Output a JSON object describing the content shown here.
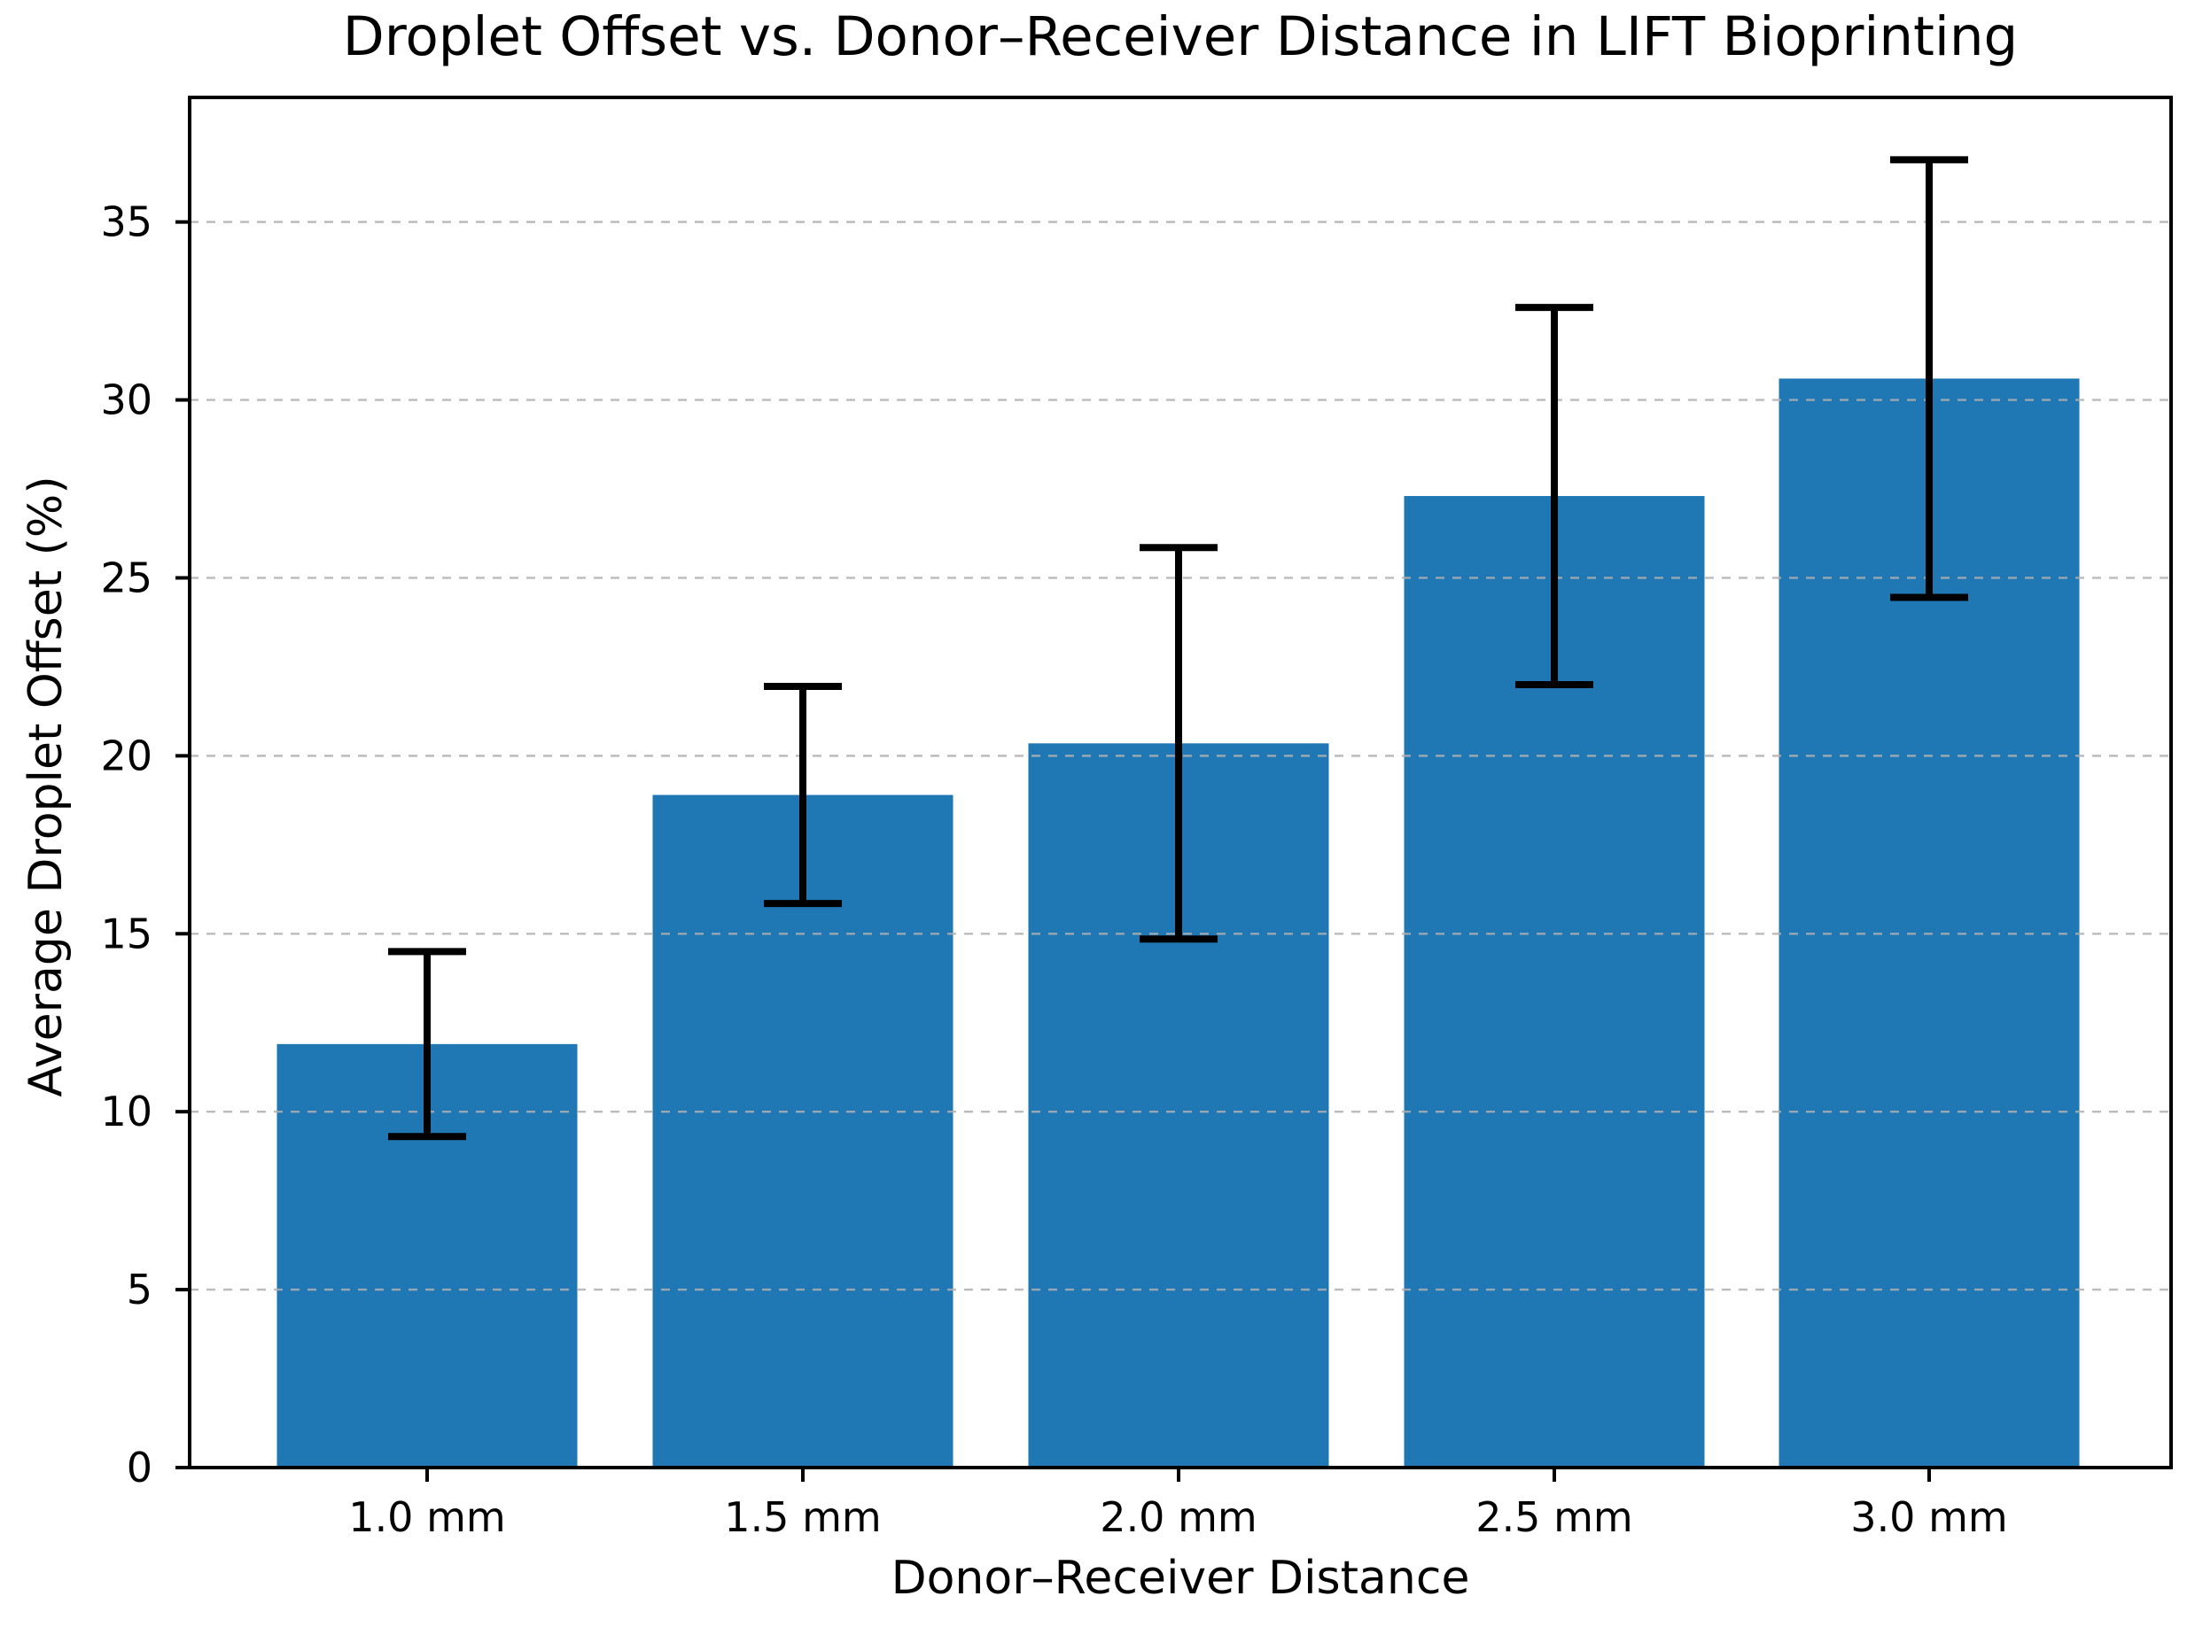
{
  "chart_data": {
    "type": "bar",
    "title": "Droplet Offset vs. Donor–Receiver Distance in LIFT Bioprinting",
    "xlabel": "Donor–Receiver Distance",
    "ylabel": "Average Droplet Offset (%)",
    "categories": [
      "1.0 mm",
      "1.5 mm",
      "2.0 mm",
      "2.5 mm",
      "3.0 mm"
    ],
    "values": [
      11.9,
      18.9,
      20.35,
      27.3,
      30.6
    ],
    "errors": [
      2.6,
      3.05,
      5.5,
      5.3,
      6.15
    ],
    "error_bar_tops": [
      14.5,
      21.95,
      25.85,
      32.6,
      36.75
    ],
    "error_bar_bottoms": [
      9.3,
      15.85,
      14.85,
      22.0,
      24.45
    ],
    "ylim": [
      0,
      38.5
    ],
    "yticks": [
      0,
      5,
      10,
      15,
      20,
      25,
      30,
      35
    ],
    "grid": "horizontal dashed, drawn over bars",
    "legend_position": "none",
    "bar_color": "#1f77b4",
    "error_color": "#000000",
    "grid_color": "#b0b0b0",
    "axis_color": "#000000",
    "background": "#ffffff"
  }
}
